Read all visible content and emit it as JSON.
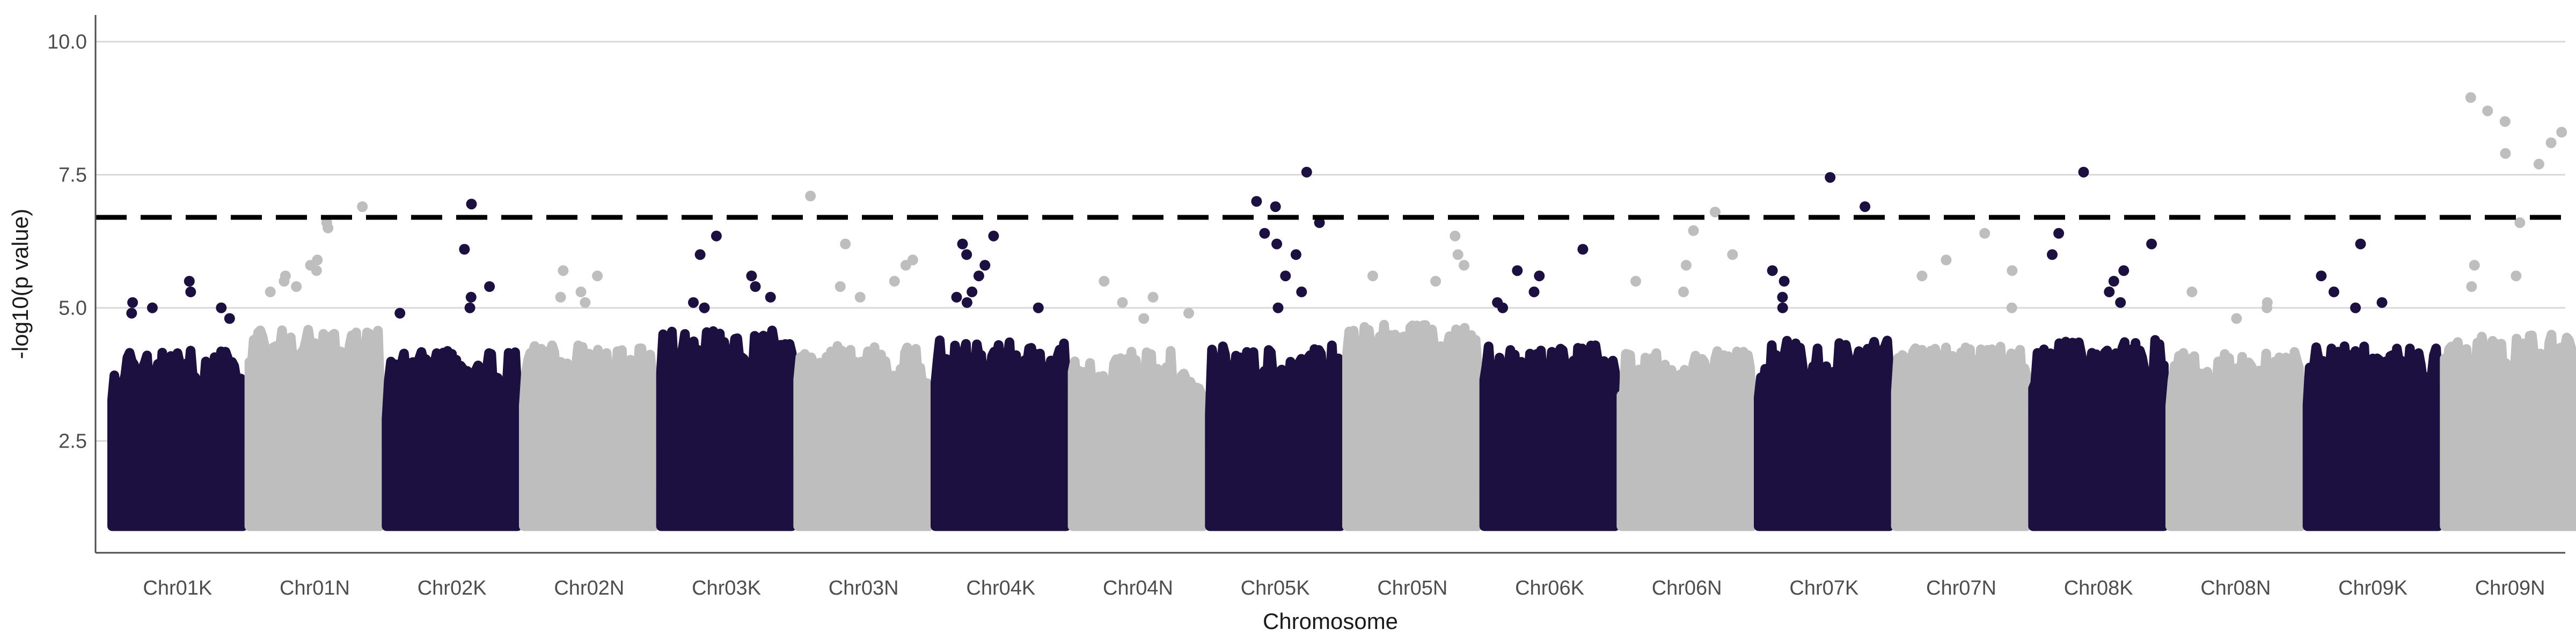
{
  "chart_data": {
    "type": "scatter",
    "subtype": "manhattan",
    "title": "",
    "xlabel": "Chromosome",
    "ylabel": "-log10(p value)",
    "ylim": [
      0.4,
      10.5
    ],
    "yticks": [
      2.5,
      5.0,
      7.5,
      10.0
    ],
    "ytick_labels": [
      "2.5",
      "5.0",
      "7.5",
      "10.0"
    ],
    "grid": "horizontal major",
    "significance_threshold": 6.7,
    "point_floor": 1.0,
    "colors": {
      "dark": "#1c1040",
      "light": "#bebebe",
      "threshold": "#000000",
      "grid": "#d9d9d9",
      "axis": "#4d4d4d"
    },
    "chromosomes": [
      {
        "name": "Chr01K",
        "color": "dark",
        "band_top": 4.2,
        "points": [
          5.5,
          5.3,
          5.1,
          5.0,
          4.9,
          5.0,
          4.8
        ]
      },
      {
        "name": "Chr01N",
        "color": "light",
        "band_top": 4.6,
        "points": [
          6.9,
          6.6,
          6.5,
          5.9,
          5.8,
          5.7,
          5.6,
          5.5,
          5.3,
          5.4
        ]
      },
      {
        "name": "Chr02K",
        "color": "dark",
        "band_top": 4.2,
        "points": [
          6.95,
          6.1,
          5.4,
          5.2,
          5.0,
          4.9
        ]
      },
      {
        "name": "Chr02N",
        "color": "light",
        "band_top": 4.3,
        "points": [
          5.7,
          5.6,
          5.3,
          5.2,
          5.1
        ]
      },
      {
        "name": "Chr03K",
        "color": "dark",
        "band_top": 4.6,
        "points": [
          6.35,
          6.0,
          5.6,
          5.4,
          5.2,
          5.1,
          5.0
        ]
      },
      {
        "name": "Chr03N",
        "color": "light",
        "band_top": 4.3,
        "points": [
          7.1,
          6.2,
          5.9,
          5.5,
          5.4,
          5.8,
          5.2
        ]
      },
      {
        "name": "Chr04K",
        "color": "dark",
        "band_top": 4.4,
        "points": [
          6.35,
          6.2,
          6.0,
          5.8,
          5.6,
          5.3,
          5.2,
          5.1,
          5.0
        ]
      },
      {
        "name": "Chr04N",
        "color": "light",
        "band_top": 4.2,
        "points": [
          5.5,
          5.2,
          5.1,
          4.9,
          4.8
        ]
      },
      {
        "name": "Chr05K",
        "color": "dark",
        "band_top": 4.3,
        "points": [
          7.55,
          7.0,
          6.9,
          6.6,
          6.4,
          6.2,
          6.0,
          5.6,
          5.3,
          5.0
        ]
      },
      {
        "name": "Chr05N",
        "color": "light",
        "band_top": 4.7,
        "points": [
          6.35,
          6.0,
          5.8,
          5.6,
          5.5
        ]
      },
      {
        "name": "Chr06K",
        "color": "dark",
        "band_top": 4.3,
        "points": [
          6.1,
          5.7,
          5.6,
          5.3,
          5.1,
          5.0
        ]
      },
      {
        "name": "Chr06N",
        "color": "light",
        "band_top": 4.2,
        "points": [
          6.8,
          6.45,
          6.0,
          5.8,
          5.5,
          5.3
        ]
      },
      {
        "name": "Chr07K",
        "color": "dark",
        "band_top": 4.4,
        "points": [
          7.45,
          6.9,
          5.7,
          5.5,
          5.2,
          5.0
        ]
      },
      {
        "name": "Chr07N",
        "color": "light",
        "band_top": 4.3,
        "points": [
          6.4,
          5.9,
          5.7,
          5.6,
          5.0
        ]
      },
      {
        "name": "Chr08K",
        "color": "dark",
        "band_top": 4.4,
        "points": [
          7.55,
          6.4,
          6.2,
          6.0,
          5.7,
          5.5,
          5.3,
          5.1
        ]
      },
      {
        "name": "Chr08N",
        "color": "light",
        "band_top": 4.2,
        "points": [
          5.3,
          5.1,
          5.0,
          4.8
        ]
      },
      {
        "name": "Chr09K",
        "color": "dark",
        "band_top": 4.3,
        "points": [
          6.2,
          5.6,
          5.3,
          5.1,
          5.0
        ]
      },
      {
        "name": "Chr09N",
        "color": "light",
        "band_top": 4.5,
        "points": [
          8.95,
          8.7,
          8.5,
          8.3,
          8.1,
          7.9,
          7.7,
          6.6,
          5.8,
          5.6,
          5.4
        ]
      }
    ]
  }
}
